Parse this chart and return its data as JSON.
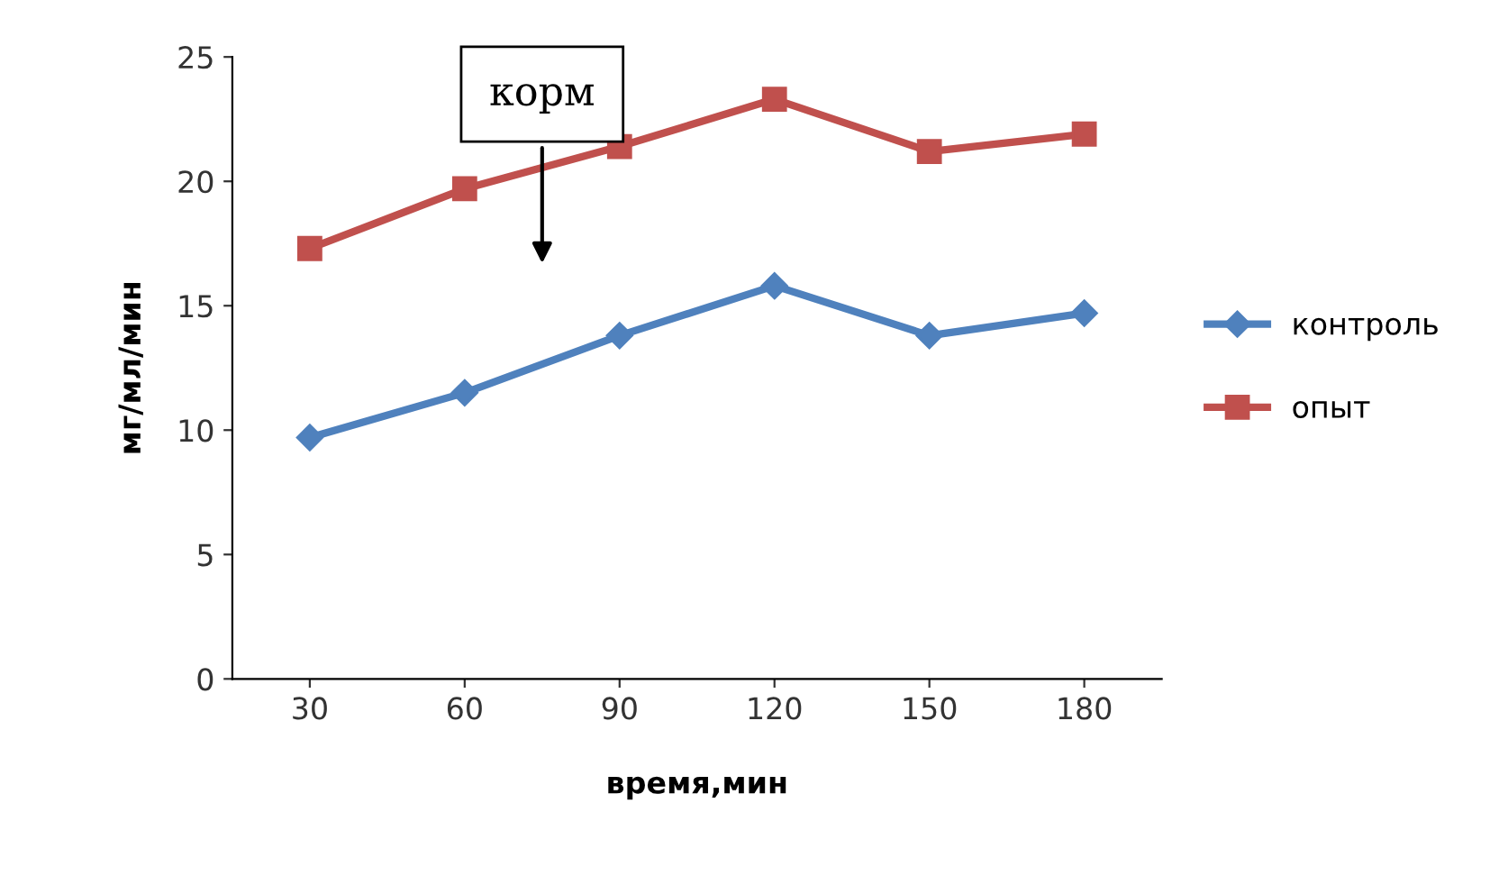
{
  "chart_data": {
    "type": "line",
    "xlabel": "время,мин",
    "ylabel": "мг/мл/мин",
    "categories": [
      "30",
      "60",
      "90",
      "120",
      "150",
      "180"
    ],
    "series": [
      {
        "name": "контроль",
        "color": "#4f81bd",
        "marker": "diamond",
        "values": [
          9.7,
          11.5,
          13.8,
          15.8,
          13.8,
          14.7
        ]
      },
      {
        "name": "опыт",
        "color": "#c0504d",
        "marker": "square",
        "values": [
          17.3,
          19.7,
          21.4,
          23.3,
          21.2,
          21.9
        ]
      }
    ],
    "ylim": [
      0,
      25
    ],
    "yticks": [
      0,
      5,
      10,
      15,
      20,
      25
    ],
    "grid": false,
    "legend": "right",
    "annotations": [
      "корм"
    ]
  }
}
